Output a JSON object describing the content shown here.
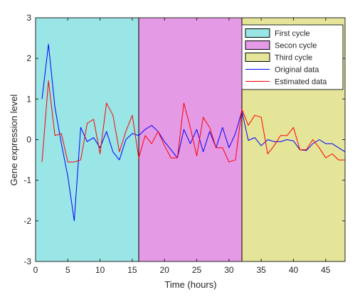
{
  "chart_data": {
    "type": "line",
    "xlabel": "Time (hours)",
    "ylabel": "Gene expression level",
    "xlim": [
      0,
      48
    ],
    "ylim": [
      -3,
      3
    ],
    "xticks": [
      0,
      5,
      10,
      15,
      20,
      25,
      30,
      35,
      40,
      45
    ],
    "yticks": [
      -3,
      -2,
      -1,
      0,
      1,
      2,
      3
    ],
    "grid": false,
    "legend_position": "top-right",
    "regions": [
      {
        "name": "First cycle",
        "x0": 0,
        "x1": 16,
        "color": "#9ae5e6"
      },
      {
        "name": "Secon cycle",
        "x0": 16,
        "x1": 32,
        "color": "#e59ae6"
      },
      {
        "name": "Third cycle",
        "x0": 32,
        "x1": 48,
        "color": "#e5e59a"
      }
    ],
    "series": [
      {
        "name": "Original data",
        "color": "#0000ff",
        "x": [
          1,
          2,
          3,
          4,
          5,
          6,
          7,
          8,
          9,
          10,
          11,
          12,
          13,
          14,
          15,
          16,
          17,
          18,
          19,
          20,
          21,
          22,
          23,
          24,
          25,
          26,
          27,
          28,
          29,
          30,
          31,
          32,
          33,
          34,
          35,
          36,
          37,
          38,
          39,
          40,
          41,
          42,
          43,
          44,
          45,
          46,
          47,
          48
        ],
        "y": [
          1.0,
          2.35,
          0.8,
          -0.1,
          -0.9,
          -2.0,
          0.3,
          -0.05,
          0.05,
          -0.2,
          0.2,
          -0.3,
          -0.5,
          0.0,
          0.15,
          0.1,
          0.25,
          0.35,
          0.2,
          -0.05,
          -0.25,
          -0.45,
          0.25,
          -0.1,
          0.25,
          -0.3,
          0.2,
          -0.2,
          0.3,
          -0.2,
          0.15,
          0.7,
          -0.02,
          0.05,
          -0.15,
          0.0,
          -0.05,
          -0.05,
          0.0,
          -0.03,
          -0.25,
          -0.27,
          -0.1,
          0.0,
          -0.1,
          -0.1,
          -0.2,
          -0.3
        ]
      },
      {
        "name": "Estimated data",
        "color": "#ff0000",
        "x": [
          1,
          2,
          3,
          4,
          5,
          6,
          7,
          8,
          9,
          10,
          11,
          12,
          13,
          14,
          15,
          16,
          17,
          18,
          19,
          20,
          21,
          22,
          23,
          24,
          25,
          26,
          27,
          28,
          29,
          30,
          31,
          32,
          33,
          34,
          35,
          36,
          37,
          38,
          39,
          40,
          41,
          42,
          43,
          44,
          45,
          46,
          47,
          48
        ],
        "y": [
          -0.55,
          1.45,
          0.1,
          0.15,
          -0.55,
          -0.55,
          -0.5,
          0.4,
          0.5,
          -0.35,
          0.9,
          0.6,
          -0.3,
          0.2,
          0.6,
          -0.45,
          0.1,
          -0.1,
          0.2,
          -0.15,
          -0.45,
          -0.45,
          0.9,
          0.3,
          -0.4,
          0.55,
          0.3,
          -0.2,
          -0.2,
          -0.55,
          -0.5,
          0.75,
          0.35,
          0.6,
          0.55,
          -0.35,
          -0.15,
          0.1,
          0.1,
          0.3,
          -0.25,
          -0.25,
          0.0,
          -0.2,
          -0.45,
          -0.35,
          -0.5,
          -0.5
        ]
      }
    ]
  }
}
